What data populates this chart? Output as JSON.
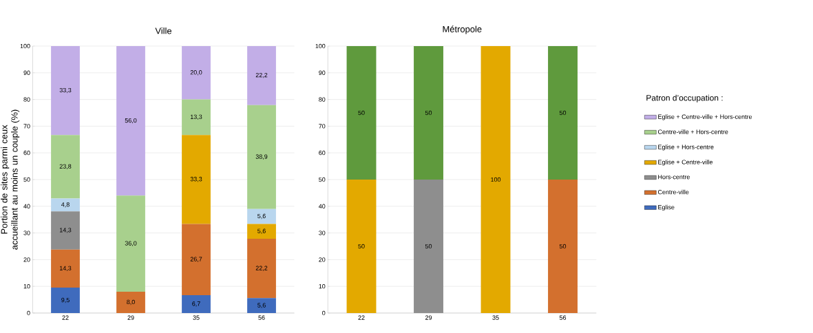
{
  "chart_data": [
    {
      "type": "bar",
      "title": "Ville",
      "ylabel": "Portion de sites parmi ceux accueillant au moins un couple (%)",
      "categories": [
        "22",
        "29",
        "35",
        "56"
      ],
      "stacked": true,
      "ylim": [
        0,
        100
      ],
      "yticks": [
        0,
        10,
        20,
        30,
        40,
        50,
        60,
        70,
        80,
        90,
        100
      ],
      "grid": "y",
      "legend": "right",
      "legend_title": "Patron d’occupation :",
      "series": [
        {
          "name": "Eglise",
          "color": "#3f6bbd",
          "values": [
            9.5,
            0,
            6.7,
            5.6
          ],
          "value_labels": [
            "9,5",
            null,
            "6,7",
            "5,6"
          ]
        },
        {
          "name": "Centre-ville",
          "color": "#d3702e",
          "values": [
            14.3,
            8.0,
            26.7,
            22.2
          ],
          "value_labels": [
            "14,3",
            "8,0",
            "26,7",
            "22,2"
          ]
        },
        {
          "name": "Hors-centre",
          "color": "#8e8e8e",
          "values": [
            14.3,
            0,
            0,
            0
          ],
          "value_labels": [
            "14,3",
            null,
            null,
            null
          ]
        },
        {
          "name": "Eglise + Centre-ville",
          "color": "#e3a900",
          "values": [
            0,
            0,
            33.3,
            5.6
          ],
          "value_labels": [
            null,
            null,
            "33,3",
            "5,6"
          ]
        },
        {
          "name": "Eglise + Hors-centre",
          "color": "#b9d6ee",
          "values": [
            4.8,
            0,
            0,
            5.6
          ],
          "value_labels": [
            "4,8",
            null,
            null,
            "5,6"
          ]
        },
        {
          "name": "Centre-ville + Hors-centre",
          "color": "#a8d08d",
          "values": [
            23.8,
            36.0,
            13.3,
            38.9
          ],
          "value_labels": [
            "23,8",
            "36,0",
            "13,3",
            "38,9"
          ]
        },
        {
          "name": "Eglise + Centre-ville + Hors-centre",
          "color": "#c2aee7",
          "values": [
            33.3,
            56.0,
            20.0,
            22.2
          ],
          "value_labels": [
            "33,3",
            "56,0",
            "20,0",
            "22,2"
          ]
        }
      ]
    },
    {
      "type": "bar",
      "title": "Métropole",
      "categories": [
        "22",
        "29",
        "35",
        "56"
      ],
      "stacked": true,
      "ylim": [
        0,
        100
      ],
      "yticks": [
        0,
        10,
        20,
        30,
        40,
        50,
        60,
        70,
        80,
        90,
        100
      ],
      "grid": "y",
      "series": [
        {
          "color": "#d3702e",
          "values": [
            0,
            0,
            0,
            50
          ],
          "value_labels": [
            null,
            null,
            null,
            "50"
          ]
        },
        {
          "color": "#8e8e8e",
          "values": [
            0,
            50,
            0,
            0
          ],
          "value_labels": [
            null,
            "50",
            null,
            null
          ]
        },
        {
          "color": "#e3a900",
          "values": [
            50,
            0,
            100,
            0
          ],
          "value_labels": [
            "50",
            null,
            "100",
            null
          ]
        },
        {
          "color": "#5f9a3d",
          "values": [
            50,
            50,
            0,
            50
          ],
          "value_labels": [
            "50",
            "50",
            null,
            "50"
          ]
        }
      ]
    }
  ]
}
